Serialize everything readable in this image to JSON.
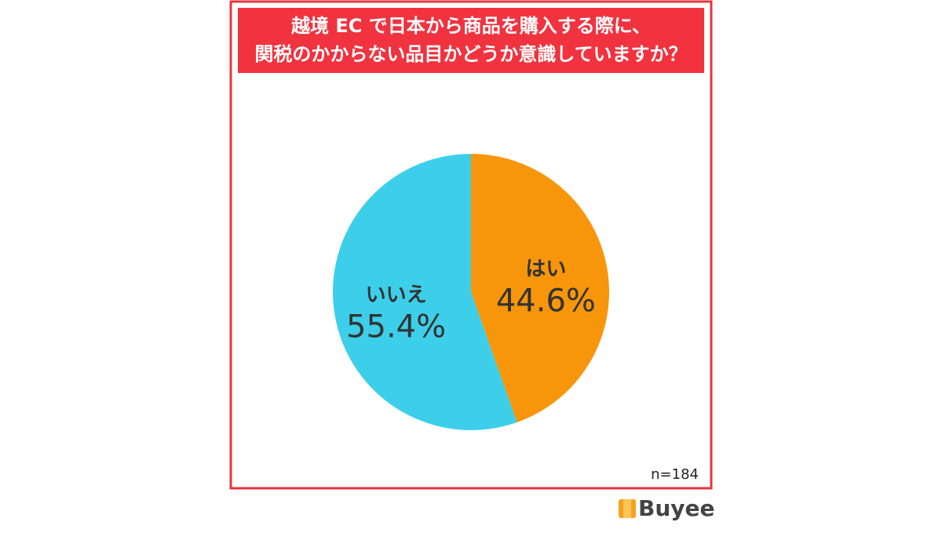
{
  "chart_data": {
    "type": "pie",
    "title": [
      "越境 EC で日本から商品を購入する際に、",
      "関税のかからない品目かどうか意識していますか？"
    ],
    "categories": [
      "はい",
      "いいえ"
    ],
    "values": [
      44.6,
      55.4
    ],
    "value_labels": [
      "44.6%",
      "55.4%"
    ],
    "colors": [
      "#f7960b",
      "#3dcfea"
    ],
    "note": "n=184"
  },
  "logo": "Buyee"
}
